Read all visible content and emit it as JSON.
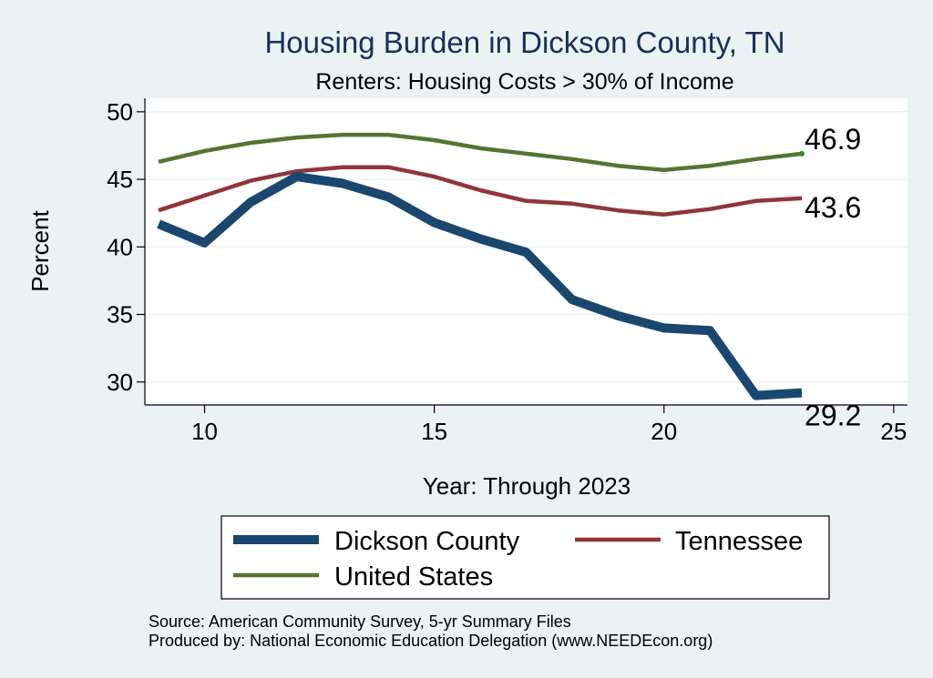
{
  "chart_data": {
    "type": "line",
    "title": "Housing Burden in Dickson County, TN",
    "subtitle": "Renters: Housing Costs > 30% of Income",
    "xlabel": "Year: Through 2023",
    "ylabel": "Percent",
    "xlim": [
      8.7,
      25.3
    ],
    "ylim": [
      28.3,
      51
    ],
    "xticks": [
      10,
      15,
      20,
      25
    ],
    "yticks": [
      30,
      35,
      40,
      45,
      50
    ],
    "grid": true,
    "series": [
      {
        "name": "Dickson County",
        "color": "#1a476f",
        "x": [
          9,
          10,
          11,
          12,
          13,
          14,
          15,
          16,
          17,
          18,
          19,
          20,
          21,
          22,
          23
        ],
        "values": [
          41.7,
          40.3,
          43.3,
          45.2,
          44.7,
          43.7,
          41.8,
          40.6,
          39.6,
          36.1,
          34.9,
          34.0,
          33.8,
          29.0,
          29.2
        ],
        "end_label": "29.2"
      },
      {
        "name": "Tennessee",
        "color": "#90353b",
        "x": [
          9,
          10,
          11,
          12,
          13,
          14,
          15,
          16,
          17,
          18,
          19,
          20,
          21,
          22,
          23
        ],
        "values": [
          42.7,
          43.8,
          44.9,
          45.6,
          45.9,
          45.9,
          45.2,
          44.2,
          43.4,
          43.2,
          42.7,
          42.4,
          42.8,
          43.4,
          43.6
        ],
        "end_label": "43.6"
      },
      {
        "name": "United States",
        "color": "#55752f",
        "x": [
          9,
          10,
          11,
          12,
          13,
          14,
          15,
          16,
          17,
          18,
          19,
          20,
          21,
          22,
          23
        ],
        "values": [
          46.3,
          47.1,
          47.7,
          48.1,
          48.3,
          48.3,
          47.9,
          47.3,
          46.9,
          46.5,
          46.0,
          45.7,
          46.0,
          46.5,
          46.9
        ],
        "end_label": "46.9"
      }
    ],
    "legend": {
      "position": "bottom",
      "items": [
        "Dickson County",
        "Tennessee",
        "United States"
      ]
    },
    "notes": [
      "Source: American Community Survey, 5-yr Summary Files",
      "Produced by: National Economic Education Delegation (www.NEEDEcon.org)"
    ]
  },
  "colors": {
    "background": "#eaf2f3",
    "plot_background": "#ffffff",
    "grid": "#eaf2f3"
  }
}
